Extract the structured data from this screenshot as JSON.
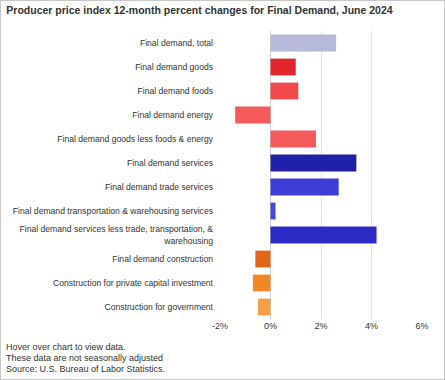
{
  "chart_data": {
    "type": "bar",
    "orientation": "horizontal",
    "title": "Producer price index 12-month percent changes for Final Demand, June 2024",
    "categories": [
      "Final demand, total",
      "Final demand goods",
      "Final demand foods",
      "Final demand energy",
      "Final demand goods less foods & energy",
      "Final demand services",
      "Final demand trade services",
      "Final demand transportation & warehousing services",
      "Final demand services less trade, transportation, & warehousing",
      "Final demand construction",
      "Construction for private capital investment",
      "Construction for government"
    ],
    "values": [
      2.6,
      1.0,
      1.1,
      -1.4,
      1.8,
      3.4,
      2.7,
      0.2,
      4.2,
      -0.6,
      -0.7,
      -0.5
    ],
    "colors": [
      "#b8b8d8",
      "#e0262b",
      "#f04a4a",
      "#f45a5a",
      "#f45a5a",
      "#1f1fa8",
      "#3c3cd6",
      "#4646dc",
      "#2c2cc4",
      "#e0661a",
      "#f0882a",
      "#f4a048"
    ],
    "xlim": [
      -2,
      6
    ],
    "xticks": [
      {
        "value": -2,
        "label": "-2%"
      },
      {
        "value": 0,
        "label": "0%"
      },
      {
        "value": 2,
        "label": "2%"
      },
      {
        "value": 4,
        "label": "4%"
      },
      {
        "value": 6,
        "label": "6%"
      }
    ],
    "grid": true,
    "annotations": [
      "Hover over chart to view data.",
      "These data are not seasonally adjusted",
      "Source: U.S. Bureau of Labor Statistics."
    ]
  }
}
